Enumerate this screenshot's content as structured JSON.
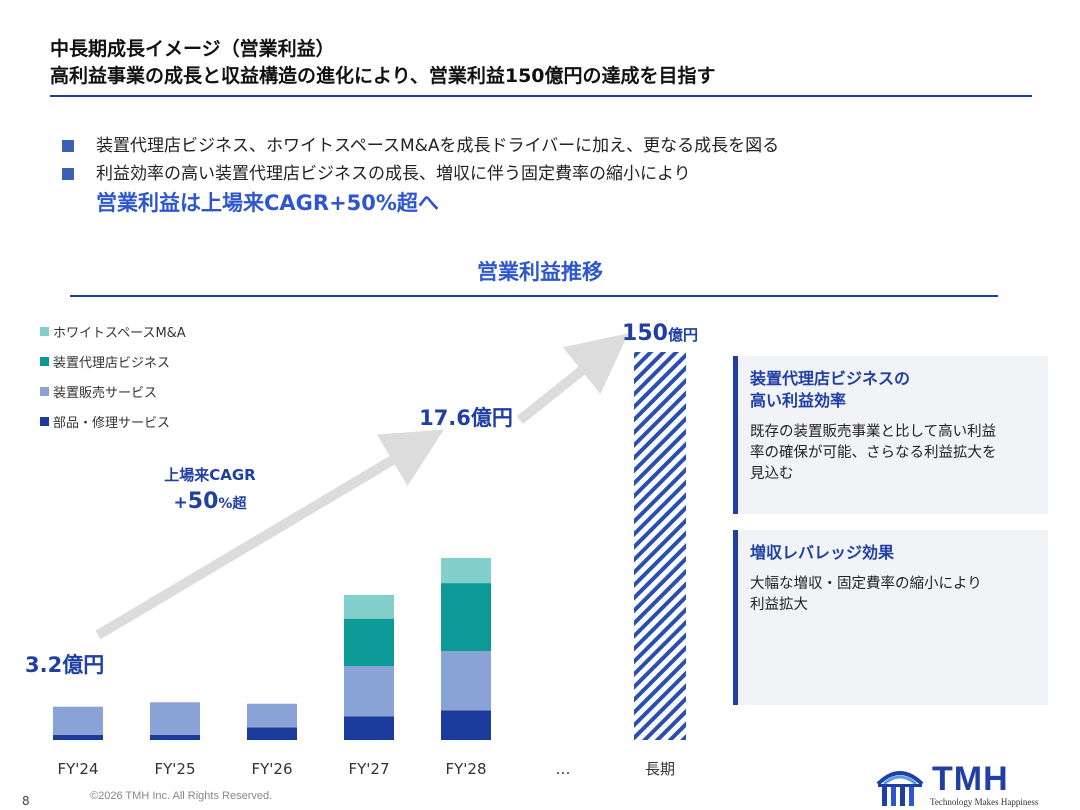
{
  "slide": {
    "title_line1": "中長期成長イメージ（営業利益）",
    "title_line2": "高利益事業の成長と収益構造の進化により、営業利益150億円の達成を目指す",
    "page_number": "8",
    "copyright": "©2026 TMH Inc. All Rights Reserved."
  },
  "bullets": [
    "装置代理店ビジネス、ホワイトスペースM&Aを成長ドライバーに加え、更なる成長を図る",
    "利益効率の高い装置代理店ビジネスの成長、増収に伴う固定費率の縮小により"
  ],
  "highlight": "営業利益は上場来CAGR+50%超へ",
  "chart_title": "営業利益推移",
  "cagr": {
    "line1": "上場来CAGR",
    "prefix": "+",
    "value": "50",
    "suffix": "%超"
  },
  "colors": {
    "accent": "#2d56d0",
    "navy": "#1f3fa4",
    "parts_repair": "#1a3a9c",
    "equipment_sales": "#8aa3d6",
    "agency": "#0d9a96",
    "whitespace": "#82cfcc",
    "arrow": "#dcdcdc"
  },
  "chart_data": {
    "type": "bar",
    "categories": [
      "FY'24",
      "FY'25",
      "FY'26",
      "FY'27",
      "FY'28",
      "…",
      "長期"
    ],
    "series": [
      {
        "name": "部品・修理サービス",
        "color": "#1a3a9c",
        "values": [
          0.35,
          0.35,
          0.85,
          1.6,
          2.0,
          null,
          null
        ]
      },
      {
        "name": "装置販売サービス",
        "color": "#8aa3d6",
        "values": [
          1.9,
          2.2,
          1.6,
          3.4,
          4.0,
          null,
          null
        ]
      },
      {
        "name": "装置代理店ビジネス",
        "color": "#0d9a96",
        "values": [
          0,
          0,
          0,
          3.2,
          4.6,
          null,
          null
        ]
      },
      {
        "name": "ホワイトスペースM&A",
        "color": "#82cfcc",
        "values": [
          0,
          0,
          0,
          1.6,
          1.7,
          null,
          null
        ]
      }
    ],
    "legend_order": [
      "ホワイトスペースM&A",
      "装置代理店ビジネス",
      "装置販売サービス",
      "部品・修理サービス"
    ],
    "data_labels": [
      {
        "category": "FY'24",
        "value_text": "3.2",
        "unit": "億円"
      },
      {
        "category": "FY'28",
        "value_text": "17.6",
        "unit": "億円"
      },
      {
        "category": "長期",
        "value_text": "150",
        "unit": "億円"
      }
    ],
    "long_term": {
      "category": "長期",
      "pattern": "hatched"
    },
    "axis_break": [
      "FY'27",
      "FY'28"
    ],
    "legend_position": "top-left",
    "grid": false
  },
  "cards": [
    {
      "heading": "装置代理店ビジネスの\n高い利益効率",
      "body": "既存の装置販売事業と比して高い利益\n率の確保が可能、さらなる利益拡大を\n見込む"
    },
    {
      "heading": "増収レバレッジ効果",
      "body": "大幅な増収・固定費率の縮小により\n利益拡大"
    }
  ],
  "logo": {
    "name": "TMH",
    "tagline": "Technology Makes Happiness"
  }
}
